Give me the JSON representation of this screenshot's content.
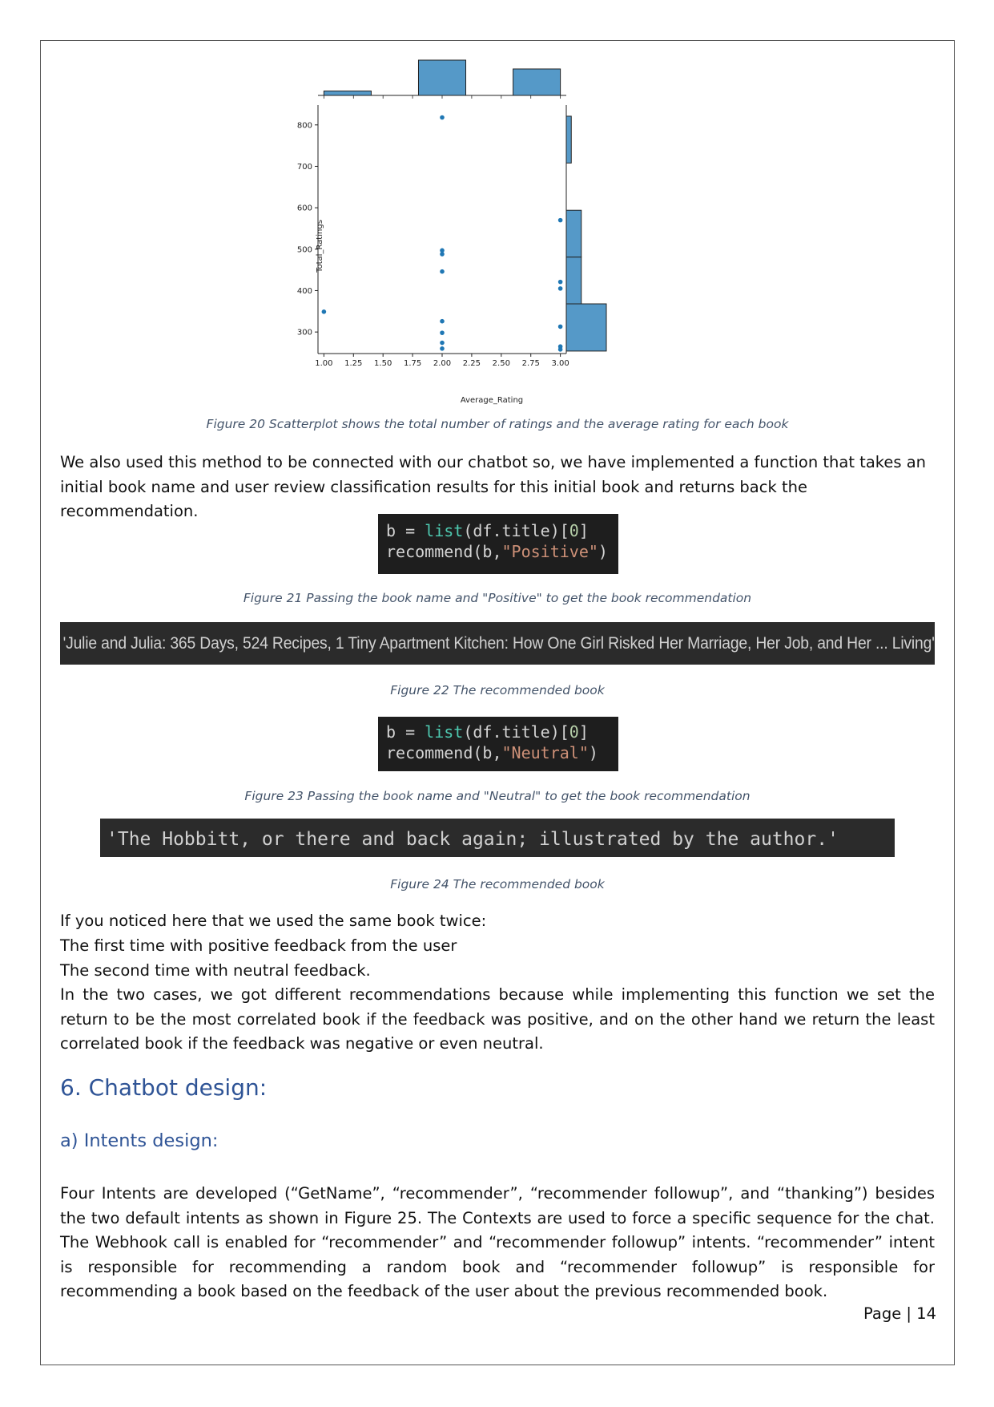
{
  "chart_data": {
    "type": "scatter",
    "title": "",
    "xlabel": "Average_Rating",
    "ylabel": "Total_Ratings",
    "xlim": [
      0.95,
      3.05
    ],
    "ylim": [
      248,
      848
    ],
    "x_ticks": [
      1.0,
      1.25,
      1.5,
      1.75,
      2.0,
      2.25,
      2.5,
      2.75,
      3.0
    ],
    "x_tick_labels": [
      "1.00",
      "1.25",
      "1.50",
      "1.75",
      "2.00",
      "2.25",
      "2.50",
      "2.75",
      "3.00"
    ],
    "y_ticks": [
      300,
      400,
      500,
      600,
      700,
      800
    ],
    "y_tick_labels": [
      "300",
      "400",
      "500",
      "600",
      "700",
      "800"
    ],
    "points": [
      {
        "x": 1.0,
        "y": 349
      },
      {
        "x": 2.0,
        "y": 818
      },
      {
        "x": 2.0,
        "y": 497
      },
      {
        "x": 2.0,
        "y": 488
      },
      {
        "x": 2.0,
        "y": 446
      },
      {
        "x": 2.0,
        "y": 326
      },
      {
        "x": 2.0,
        "y": 298
      },
      {
        "x": 2.0,
        "y": 274
      },
      {
        "x": 2.0,
        "y": 260
      },
      {
        "x": 3.0,
        "y": 570
      },
      {
        "x": 3.0,
        "y": 421
      },
      {
        "x": 3.0,
        "y": 405
      },
      {
        "x": 3.0,
        "y": 313
      },
      {
        "x": 3.0,
        "y": 265
      },
      {
        "x": 3.0,
        "y": 258
      }
    ],
    "marginal_x_hist": [
      {
        "from": 1.0,
        "to": 1.4,
        "count": 1
      },
      {
        "from": 1.8,
        "to": 2.2,
        "count": 8
      },
      {
        "from": 2.6,
        "to": 3.0,
        "count": 6
      }
    ],
    "marginal_y_hist": [
      {
        "from": 254,
        "to": 368,
        "count": 8
      },
      {
        "from": 368,
        "to": 481,
        "count": 3
      },
      {
        "from": 481,
        "to": 594,
        "count": 3
      },
      {
        "from": 708,
        "to": 821,
        "count": 1
      }
    ],
    "color": "#1f77b4",
    "hist_color": "#5599c8"
  },
  "captions": {
    "fig20": "Figure 20 Scatterplot shows the total number of ratings and the average rating for each book",
    "fig21": "Figure 21 Passing the book name and \"Positive\" to get the book recommendation",
    "fig22": "Figure 22 The recommended book",
    "fig23": "Figure 23 Passing the book name and \"Neutral\" to get the book recommendation",
    "fig24": "Figure 24 The recommended book"
  },
  "paragraphs": {
    "intro": "We also used this method to be connected with our chatbot so, we have implemented a function that takes an initial book name and user review classification results for this initial book and returns back the recommendation.",
    "noticed": "If you noticed here that we used the same book twice:",
    "first_time": "The first time with positive feedback from the user",
    "second_time": "The second time with neutral feedback.",
    "two_cases": "In the two cases, we got different recommendations because while implementing this function we set the return to be the most correlated book if the feedback was positive, and on the other hand we return the least correlated book if the feedback was negative or even neutral.",
    "intents": "Four Intents are developed (“GetName”, “recommender”, “recommender followup”, and “thanking”) besides the two default intents as shown in Figure 25. The Contexts are used to force a specific sequence for the chat. The Webhook call is enabled for “recommender” and “recommender followup” intents. “recommender” intent is responsible for recommending a random book and “recommender followup” is responsible for recommending a book based on the feedback of the user about the previous recommended book."
  },
  "code1": {
    "l1_a": "b = ",
    "l1_fn": "list",
    "l1_b": "(df.title)[",
    "l1_num": "0",
    "l1_c": "]",
    "l2_a": "recommend(b,",
    "l2_str": "\"Positive\"",
    "l2_b": ")"
  },
  "code2": {
    "l1_a": "b = ",
    "l1_fn": "list",
    "l1_b": "(df.title)[",
    "l1_num": "0",
    "l1_c": "]",
    "l2_a": "recommend(b,",
    "l2_str": "\"Neutral\"",
    "l2_b": ")"
  },
  "outputs": {
    "out1": "'Julie and Julia: 365 Days, 524 Recipes, 1 Tiny Apartment Kitchen: How One Girl Risked Her Marriage, Her Job, and Her ... Living'",
    "out2": "'The Hobbitt, or there and back again; illustrated by the author.'"
  },
  "headings": {
    "h6": "6. Chatbot design:",
    "ha": "a)  Intents design:"
  },
  "page_number": "Page | 14"
}
